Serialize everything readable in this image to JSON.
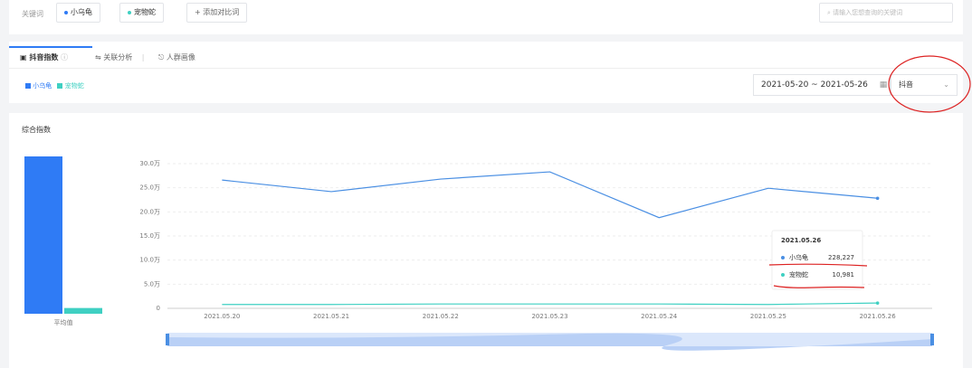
{
  "keyword_bar": {
    "label": "关键词",
    "keywords": [
      "小乌龟",
      "宠物蛇"
    ],
    "add_button": "添加对比词",
    "search_placeholder": "请输入您想查询的关键词"
  },
  "tabs": [
    "抖音指数",
    "关联分析",
    "人群画像"
  ],
  "filters": {
    "date_range": "2021-05-20 ~ 2021-05-26",
    "platform": "抖音"
  },
  "panel_title": "综合指数",
  "chart_data": [
    {
      "type": "bar",
      "categories": [
        "平均值"
      ],
      "series": [
        {
          "color": "#2f7bf5",
          "values": [
            246300
          ]
        },
        {
          "color": "#3fd0c2",
          "values": [
            9000
          ]
        }
      ]
    },
    {
      "type": "line",
      "x": [
        "2021.05.20",
        "2021.05.21",
        "2021.05.22",
        "2021.05.23",
        "2021.05.24",
        "2021.05.25",
        "2021.05.26"
      ],
      "series": [
        {
          "name": "小乌龟",
          "color": "#4a8fe3",
          "values": [
            266000,
            242000,
            268000,
            283000,
            188000,
            249000,
            228227
          ],
          "value_labels": [
            null,
            null,
            null,
            null,
            null,
            null,
            "228,227"
          ]
        },
        {
          "name": "宠物蛇",
          "color": "#3fd0c2",
          "values": [
            8000,
            8000,
            9000,
            9000,
            9000,
            8000,
            10981
          ],
          "value_labels": [
            null,
            null,
            null,
            null,
            null,
            null,
            "10,981"
          ]
        }
      ],
      "ylim": [
        0,
        300000
      ],
      "yticks": [
        0,
        {
          "value": 50000,
          "label": "5.0万"
        },
        {
          "value": 100000,
          "label": "10.0万"
        },
        {
          "value": 150000,
          "label": "15.0万"
        },
        {
          "value": 200000,
          "label": "20.0万"
        },
        {
          "value": 250000,
          "label": "25.0万"
        },
        {
          "value": 300000,
          "label": "30.0万"
        }
      ],
      "grid": true
    }
  ]
}
